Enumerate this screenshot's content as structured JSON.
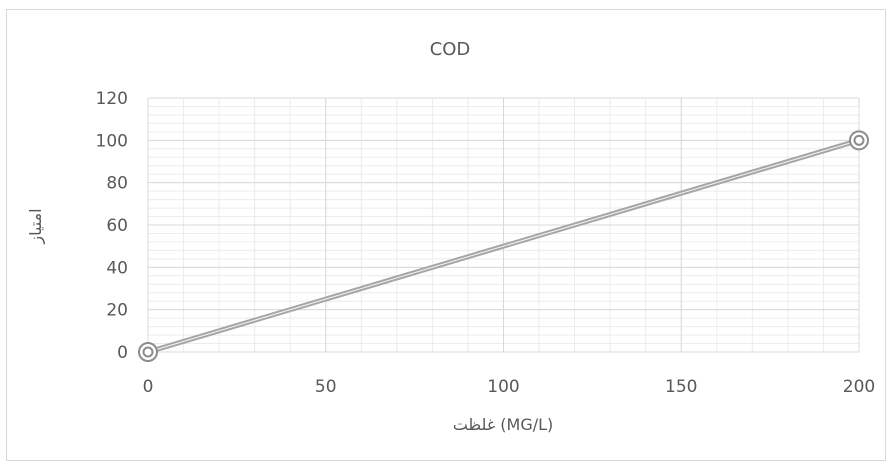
{
  "chart_data": {
    "type": "scatter",
    "title": "COD",
    "xlabel": "غلظت (MG/L)",
    "ylabel": "امتیاز",
    "xlim": [
      0,
      200
    ],
    "ylim": [
      0,
      120
    ],
    "x_ticks": [
      0,
      50,
      100,
      150,
      200
    ],
    "y_ticks": [
      0,
      20,
      40,
      60,
      80,
      100,
      120
    ],
    "grid": "major and minor",
    "legend": "none",
    "series": [
      {
        "x": [
          0,
          200
        ],
        "y": [
          0,
          100
        ],
        "color": "#a6a6a6",
        "marker": "double-circle",
        "line": "straight"
      }
    ]
  }
}
